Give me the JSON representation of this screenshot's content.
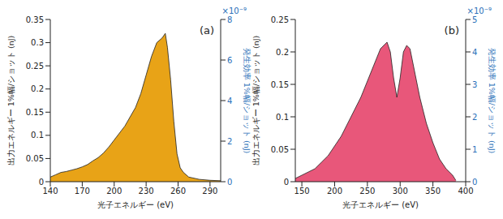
{
  "chart_data": [
    {
      "type": "area",
      "annotations": [
        "(a)"
      ],
      "x_label": "光子エネルギー (eV)",
      "y_label": "出力エネルギー 1%幅/ショット (nJ)",
      "y2_label": "発生効率 1%幅/ショット (nJ)",
      "y2_scale_label": "×10⁻⁹",
      "color": "#e8a317",
      "grid": false,
      "x": [
        140,
        145,
        150,
        155,
        160,
        165,
        170,
        175,
        180,
        185,
        190,
        195,
        200,
        205,
        210,
        215,
        220,
        225,
        230,
        235,
        240,
        245,
        248,
        250,
        253,
        256,
        259,
        262,
        265,
        270,
        280,
        290,
        300
      ],
      "values": [
        0.01,
        0.015,
        0.02,
        0.022,
        0.025,
        0.028,
        0.032,
        0.037,
        0.045,
        0.052,
        0.062,
        0.075,
        0.09,
        0.105,
        0.12,
        0.14,
        0.16,
        0.19,
        0.23,
        0.27,
        0.3,
        0.31,
        0.32,
        0.29,
        0.22,
        0.13,
        0.06,
        0.03,
        0.02,
        0.01,
        0.005,
        0.003,
        0.002
      ],
      "xlim": [
        140,
        300
      ],
      "xticks": [
        140,
        170,
        200,
        230,
        260,
        290
      ],
      "ylim": [
        0,
        0.35
      ],
      "yticks": [
        0,
        0.05,
        0.1,
        0.15,
        0.2,
        0.25,
        0.3,
        0.35
      ],
      "y2lim": [
        0,
        8
      ],
      "y2ticks": [
        0,
        2,
        4,
        6,
        8
      ]
    },
    {
      "type": "area",
      "annotations": [
        "(b)"
      ],
      "x_label": "光子エネルギー (eV)",
      "y_label": "出力エネルギー 1%幅/ショット (nJ)",
      "y2_label": "発生効率 1%幅/ショット (nJ)",
      "y2_scale_label": "×10⁻⁹",
      "color": "#e8577a",
      "grid": false,
      "x": [
        140,
        150,
        160,
        170,
        180,
        190,
        200,
        210,
        220,
        230,
        240,
        250,
        260,
        270,
        275,
        280,
        285,
        290,
        295,
        300,
        305,
        310,
        315,
        320,
        330,
        340,
        350,
        360,
        370,
        380,
        385
      ],
      "values": [
        0.005,
        0.01,
        0.015,
        0.02,
        0.03,
        0.04,
        0.055,
        0.07,
        0.09,
        0.11,
        0.13,
        0.155,
        0.18,
        0.205,
        0.21,
        0.215,
        0.2,
        0.16,
        0.13,
        0.16,
        0.2,
        0.21,
        0.205,
        0.18,
        0.13,
        0.09,
        0.06,
        0.035,
        0.02,
        0.01,
        0.002
      ],
      "xlim": [
        140,
        400
      ],
      "xticks": [
        150,
        200,
        250,
        300,
        350,
        400
      ],
      "ylim": [
        0,
        0.25
      ],
      "yticks": [
        0,
        0.05,
        0.1,
        0.15,
        0.2,
        0.25
      ],
      "y2lim": [
        0,
        5
      ],
      "y2ticks": [
        0,
        1,
        2,
        3,
        4,
        5
      ]
    }
  ]
}
